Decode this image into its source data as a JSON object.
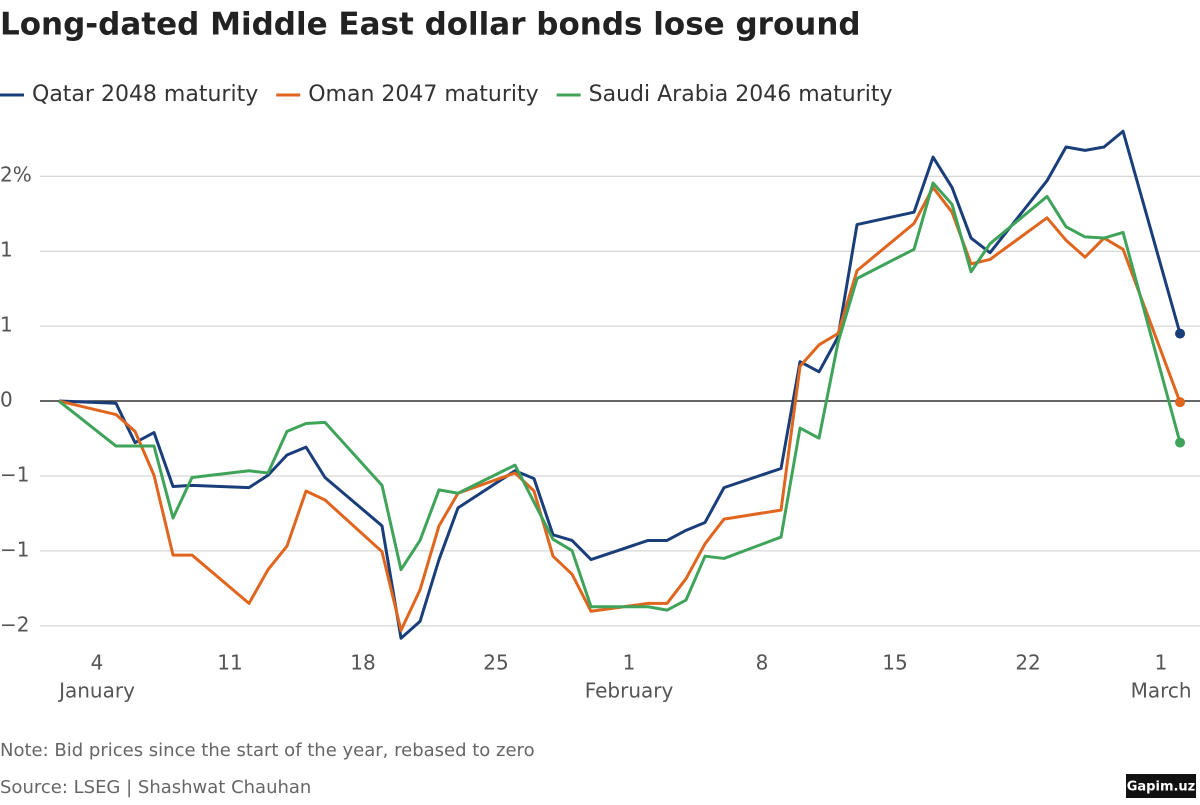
{
  "chart_data": {
    "type": "line",
    "title": "Long-dated Middle East dollar bonds lose ground",
    "note": "Note: Bid prices since the start of the year, rebased to zero",
    "source": "Source: LSEG | Shashwat Chauhan",
    "watermark": "Gapim.uz",
    "x": [
      2,
      5,
      6,
      7,
      8,
      9,
      12,
      13,
      14,
      15,
      16,
      19,
      20,
      21,
      22,
      23,
      26,
      27,
      28,
      29,
      30,
      33,
      34,
      35,
      36,
      37,
      40,
      41,
      42,
      43,
      44,
      47,
      48,
      49,
      50,
      51,
      54,
      55,
      56,
      57,
      58,
      61
    ],
    "series": [
      {
        "name": "Qatar 2048 maturity",
        "color": "#1a3e7a",
        "values": [
          0,
          -0.02,
          -0.37,
          -0.28,
          -0.76,
          -0.75,
          -0.77,
          -0.66,
          -0.48,
          -0.41,
          -0.68,
          -1.11,
          -2.11,
          -1.96,
          -1.41,
          -0.95,
          -0.62,
          -0.69,
          -1.19,
          -1.24,
          -1.41,
          -1.24,
          -1.24,
          -1.15,
          -1.08,
          -0.77,
          -0.6,
          0.35,
          0.26,
          0.57,
          1.57,
          1.68,
          2.17,
          1.9,
          1.45,
          1.32,
          1.96,
          2.26,
          2.23,
          2.26,
          2.4,
          0.6
        ]
      },
      {
        "name": "Oman 2047 maturity",
        "color": "#e0661f",
        "values": [
          0,
          -0.12,
          -0.27,
          -0.66,
          -1.37,
          -1.37,
          -1.8,
          -1.5,
          -1.29,
          -0.8,
          -0.88,
          -1.34,
          -2.04,
          -1.68,
          -1.11,
          -0.82,
          -0.64,
          -0.8,
          -1.38,
          -1.54,
          -1.87,
          -1.8,
          -1.8,
          -1.58,
          -1.27,
          -1.05,
          -0.97,
          0.31,
          0.5,
          0.6,
          1.16,
          1.58,
          1.9,
          1.68,
          1.22,
          1.26,
          1.63,
          1.43,
          1.28,
          1.45,
          1.35,
          -0.01
        ]
      },
      {
        "name": "Saudi Arabia 2046 maturity",
        "color": "#3fa45a",
        "values": [
          0,
          -0.4,
          -0.4,
          -0.4,
          -1.04,
          -0.68,
          -0.62,
          -0.64,
          -0.27,
          -0.2,
          -0.19,
          -0.75,
          -1.5,
          -1.24,
          -0.79,
          -0.82,
          -0.57,
          -0.9,
          -1.23,
          -1.33,
          -1.83,
          -1.83,
          -1.86,
          -1.77,
          -1.38,
          -1.4,
          -1.21,
          -0.24,
          -0.33,
          0.52,
          1.09,
          1.35,
          1.94,
          1.75,
          1.15,
          1.4,
          1.82,
          1.55,
          1.46,
          1.45,
          1.5,
          -0.37
        ]
      }
    ],
    "xlim": [
      1,
      62.05
    ],
    "xticks": [
      4,
      11,
      18,
      25,
      {
        "value": 32,
        "label": "1"
      },
      {
        "value": 39,
        "label": "8"
      },
      {
        "value": 46,
        "label": "15"
      },
      {
        "value": 53,
        "label": "22"
      },
      {
        "value": 60,
        "label": "1"
      }
    ],
    "month_labels": [
      {
        "value": 4,
        "label": "January"
      },
      {
        "value": 32,
        "label": "February"
      },
      {
        "value": 60,
        "label": "March"
      }
    ],
    "ylim": [
      -2.17,
      2.5
    ],
    "yticks": [
      {
        "value": -2,
        "label": "−2"
      },
      {
        "value": -1.333,
        "label": "−1"
      },
      {
        "value": -0.667,
        "label": "−1"
      },
      0,
      {
        "value": 0.667,
        "label": "1"
      },
      {
        "value": 1.333,
        "label": "1"
      },
      {
        "value": 2,
        "label": "2%"
      }
    ],
    "grid": true
  }
}
